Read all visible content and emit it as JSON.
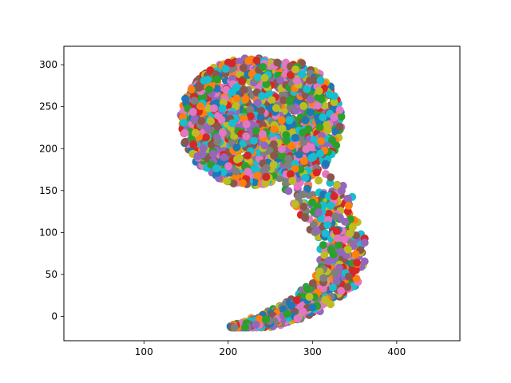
{
  "chart_data": {
    "type": "scatter",
    "title": "",
    "xlabel": "",
    "ylabel": "",
    "xlim": [
      5,
      475
    ],
    "ylim": [
      -29,
      322
    ],
    "xticks": [
      100,
      200,
      300,
      400
    ],
    "yticks": [
      0,
      50,
      100,
      150,
      200,
      250,
      300
    ],
    "xtick_labels": [
      "100",
      "200",
      "300",
      "400"
    ],
    "ytick_labels": [
      "0",
      "50",
      "100",
      "150",
      "200",
      "250",
      "300"
    ],
    "grid": false,
    "legend": "none",
    "palette": [
      "#1f77b4",
      "#ff7f0e",
      "#2ca02c",
      "#d62728",
      "#9467bd",
      "#8c564b",
      "#e377c2",
      "#7f7f7f",
      "#bcbd22",
      "#17becf"
    ],
    "shape": "comma-shaped cluster of many small multicolored filled circles",
    "head_center": [
      228,
      232
    ],
    "head_radius": 76,
    "tail": [
      [
        300,
        155
      ],
      [
        325,
        120
      ],
      [
        338,
        85
      ],
      [
        335,
        55
      ],
      [
        320,
        35
      ],
      [
        300,
        20
      ],
      [
        280,
        8
      ],
      [
        260,
        0
      ],
      [
        242,
        -6
      ],
      [
        226,
        -10
      ],
      [
        212,
        -12
      ],
      [
        205,
        -13
      ]
    ],
    "extent": {
      "x": [
        122,
        362
      ],
      "y": [
        -13,
        308
      ]
    },
    "point_count": 2200
  }
}
